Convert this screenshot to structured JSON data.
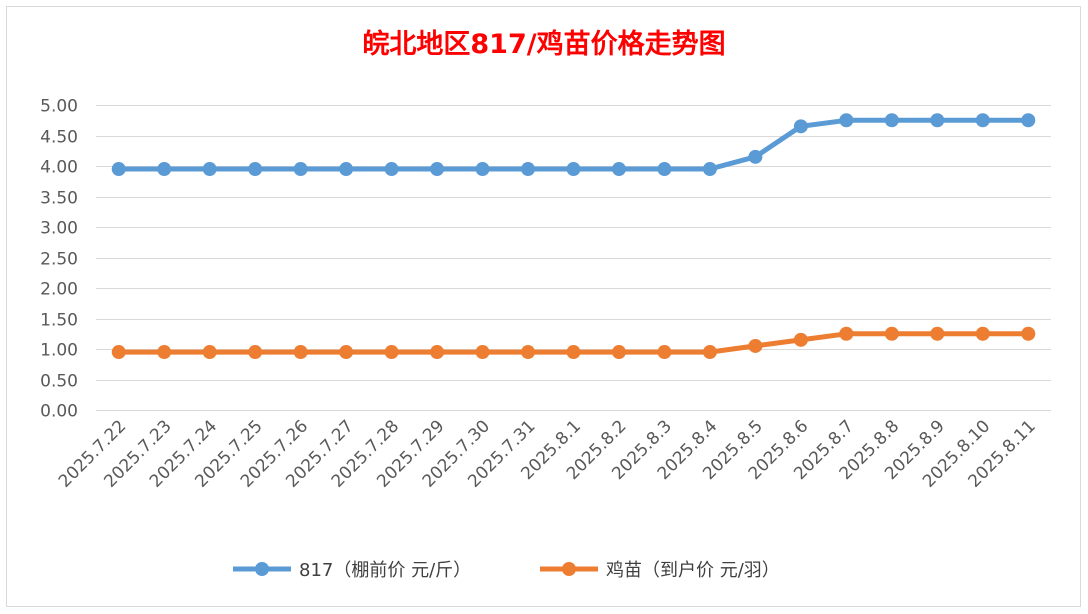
{
  "chart_data": {
    "type": "line",
    "title": "皖北地区817/鸡苗价格走势图",
    "xlabel": "",
    "ylabel": "",
    "categories": [
      "2025.7.22",
      "2025.7.23",
      "2025.7.24",
      "2025.7.25",
      "2025.7.26",
      "2025.7.27",
      "2025.7.28",
      "2025.7.29",
      "2025.7.30",
      "2025.7.31",
      "2025.8.1",
      "2025.8.2",
      "2025.8.3",
      "2025.8.4",
      "2025.8.5",
      "2025.8.6",
      "2025.8.7",
      "2025.8.8",
      "2025.8.9",
      "2025.8.10",
      "2025.8.11"
    ],
    "ylim": [
      0,
      5
    ],
    "yticks": [
      "0.00",
      "0.50",
      "1.00",
      "1.50",
      "2.00",
      "2.50",
      "3.00",
      "3.50",
      "4.00",
      "4.50",
      "5.00"
    ],
    "grid": true,
    "legend_position": "bottom",
    "series": [
      {
        "name": "817（棚前价 元/斤）",
        "color": "#5b9bd5",
        "values": [
          3.95,
          3.95,
          3.95,
          3.95,
          3.95,
          3.95,
          3.95,
          3.95,
          3.95,
          3.95,
          3.95,
          3.95,
          3.95,
          3.95,
          4.15,
          4.65,
          4.75,
          4.75,
          4.75,
          4.75,
          4.75
        ]
      },
      {
        "name": "鸡苗（到户价 元/羽）",
        "color": "#ed7d31",
        "values": [
          0.95,
          0.95,
          0.95,
          0.95,
          0.95,
          0.95,
          0.95,
          0.95,
          0.95,
          0.95,
          0.95,
          0.95,
          0.95,
          0.95,
          1.05,
          1.15,
          1.25,
          1.25,
          1.25,
          1.25,
          1.25
        ]
      }
    ]
  }
}
